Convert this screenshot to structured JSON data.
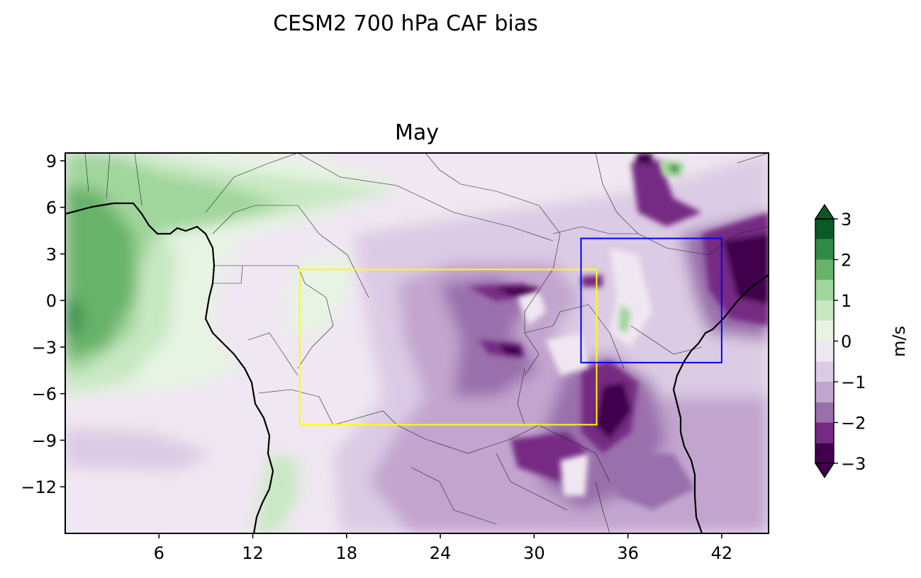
{
  "figure": {
    "suptitle": "CESM2 700 hPa CAF bias",
    "panel_title": "May"
  },
  "chart_data": {
    "type": "heatmap",
    "title": "CESM2 700 hPa CAF bias",
    "subtitle": "May",
    "xlabel": "",
    "ylabel": "",
    "xlim": [
      0,
      45
    ],
    "ylim": [
      -15,
      9.5
    ],
    "x_ticks": [
      6,
      12,
      18,
      24,
      30,
      36,
      42
    ],
    "y_ticks": [
      9,
      6,
      3,
      0,
      -3,
      -6,
      -9,
      -12
    ],
    "x_tick_labels": [
      "6",
      "12",
      "18",
      "24",
      "30",
      "36",
      "42"
    ],
    "y_tick_labels": [
      "9",
      "6",
      "3",
      "0",
      "−3",
      "−6",
      "−9",
      "−12"
    ],
    "colorbar": {
      "label": "m/s",
      "levels": [
        -3,
        -2.5,
        -2,
        -1.5,
        -1,
        -0.5,
        0,
        0.5,
        1,
        1.5,
        2,
        2.5,
        3
      ],
      "tick_values": [
        3,
        2,
        1,
        0,
        -1,
        -2,
        -3
      ],
      "tick_labels": [
        "3",
        "2",
        "1",
        "0",
        "−1",
        "−2",
        "−3"
      ],
      "colors": [
        "#40004b",
        "#762a83",
        "#9970ab",
        "#c2a5cf",
        "#dccbe4",
        "#efe7f1",
        "#e7f4e4",
        "#c8e8c2",
        "#a0d59b",
        "#68b36a",
        "#2f8b46",
        "#0a5a26"
      ],
      "extend": "both"
    },
    "boxes": [
      {
        "name": "yellow-box",
        "color": "#ffff00",
        "lon": [
          15,
          34
        ],
        "lat": [
          -8,
          2
        ]
      },
      {
        "name": "blue-box",
        "color": "#0000ff",
        "lon": [
          33,
          42
        ],
        "lat": [
          -4,
          4
        ]
      }
    ],
    "field": {
      "description": "approximate centers of anomaly features (lon, lat, value m/s)",
      "features": [
        {
          "lon": 0.5,
          "lat": -1,
          "value": 2.2
        },
        {
          "lon": 3,
          "lat": 2,
          "value": 1.6
        },
        {
          "lon": 10,
          "lat": 5,
          "value": 1.0
        },
        {
          "lon": 24,
          "lat": -3,
          "value": -1.2
        },
        {
          "lon": 28,
          "lat": 0,
          "value": -1.8
        },
        {
          "lon": 27.5,
          "lat": -3,
          "value": -2.6
        },
        {
          "lon": 29.5,
          "lat": 0.5,
          "value": -2.6
        },
        {
          "lon": 36,
          "lat": -6,
          "value": -2.6
        },
        {
          "lon": 44,
          "lat": 2,
          "value": -3.0
        },
        {
          "lon": 37,
          "lat": 6,
          "value": -2.2
        },
        {
          "lon": 39,
          "lat": 8.5,
          "value": 1.2
        },
        {
          "lon": 36,
          "lat": -1,
          "value": 0.6
        }
      ]
    }
  }
}
